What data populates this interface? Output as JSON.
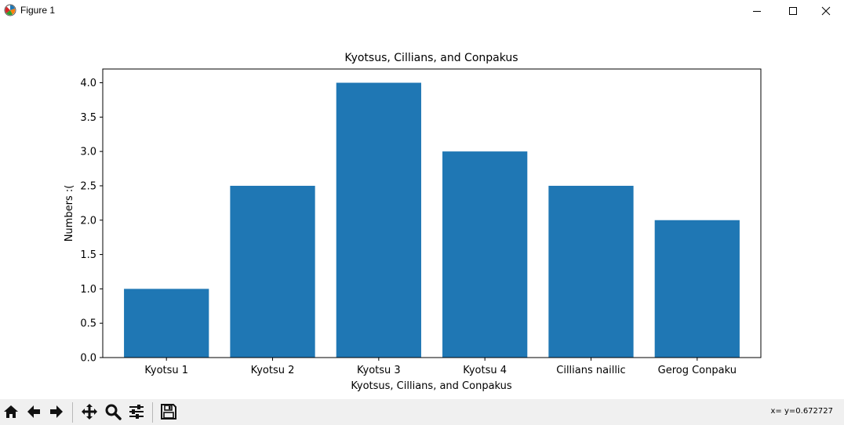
{
  "window": {
    "title": "Figure 1",
    "icon": "matplotlib-logo-icon",
    "controls": [
      "minimize-icon",
      "maximize-icon",
      "close-icon"
    ]
  },
  "toolbar": {
    "buttons": [
      "home-icon",
      "back-arrow-icon",
      "forward-arrow-icon",
      "pan-move-icon",
      "zoom-magnifier-icon",
      "subplots-sliders-icon",
      "save-floppy-icon"
    ],
    "status": "x= y=0.672727"
  },
  "chart_data": {
    "type": "bar",
    "title": "Kyotsus, Cillians, and Conpakus",
    "xlabel": "Kyotsus, Cillians, and Conpakus",
    "ylabel": "Numbers :(",
    "categories": [
      "Kyotsu 1",
      "Kyotsu 2",
      "Kyotsu 3",
      "Kyotsu 4",
      "Cillians naillic",
      "Gerog Conpaku"
    ],
    "values": [
      1.0,
      2.5,
      4.0,
      3.0,
      2.5,
      2.0
    ],
    "ylim": [
      0,
      4.2
    ],
    "yticks": [
      0.0,
      0.5,
      1.0,
      1.5,
      2.0,
      2.5,
      3.0,
      3.5,
      4.0
    ],
    "ytick_labels": [
      "0.0",
      "0.5",
      "1.0",
      "1.5",
      "2.0",
      "2.5",
      "3.0",
      "3.5",
      "4.0"
    ],
    "bar_color": "#1f77b4",
    "grid": false,
    "legend": "none"
  }
}
